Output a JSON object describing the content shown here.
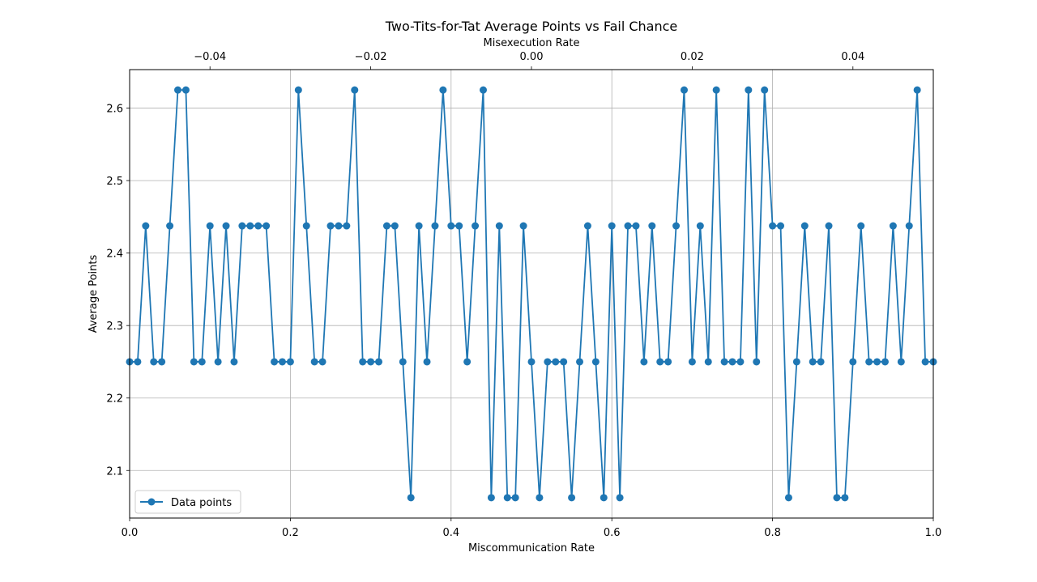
{
  "chart_data": {
    "type": "line",
    "title": "Two-Tits-for-Tat Average Points vs Fail Chance",
    "xlabel": "Miscommunication Rate",
    "ylabel": "Average Points",
    "x2label": "Misexecution Rate",
    "xlim": [
      0,
      1
    ],
    "ylim": [
      2.0344,
      2.6531
    ],
    "x2lim": [
      -0.05,
      0.05
    ],
    "xticks": [
      "0.0",
      "0.2",
      "0.4",
      "0.6",
      "0.8",
      "1.0"
    ],
    "yticks": [
      "2.1",
      "2.2",
      "2.3",
      "2.4",
      "2.5",
      "2.6"
    ],
    "x2ticks": [
      "−0.04",
      "−0.02",
      "0.00",
      "0.02",
      "0.04"
    ],
    "grid": true,
    "legend_position": "lower-left",
    "color": "#1f77b4",
    "series": [
      {
        "name": "Data points",
        "x": [
          0.0,
          0.01,
          0.02,
          0.03,
          0.04,
          0.05,
          0.06,
          0.07,
          0.08,
          0.09,
          0.1,
          0.11,
          0.12,
          0.13,
          0.14,
          0.15,
          0.16,
          0.17,
          0.18,
          0.19,
          0.2,
          0.21,
          0.22,
          0.23,
          0.24,
          0.25,
          0.26,
          0.27,
          0.28,
          0.29,
          0.3,
          0.31,
          0.32,
          0.33,
          0.34,
          0.35,
          0.36,
          0.37,
          0.38,
          0.39,
          0.4,
          0.41,
          0.42,
          0.43,
          0.44,
          0.45,
          0.46,
          0.47,
          0.48,
          0.49,
          0.5,
          0.51,
          0.52,
          0.53,
          0.54,
          0.55,
          0.56,
          0.57,
          0.58,
          0.59,
          0.6,
          0.61,
          0.62,
          0.63,
          0.64,
          0.65,
          0.66,
          0.67,
          0.68,
          0.69,
          0.7,
          0.71,
          0.72,
          0.73,
          0.74,
          0.75,
          0.76,
          0.77,
          0.78,
          0.79,
          0.8,
          0.81,
          0.82,
          0.83,
          0.84,
          0.85,
          0.86,
          0.87,
          0.88,
          0.89,
          0.9,
          0.91,
          0.92,
          0.93,
          0.94,
          0.95,
          0.96,
          0.97,
          0.98,
          0.99,
          1.0
        ],
        "values": [
          2.25,
          2.25,
          2.4375,
          2.25,
          2.25,
          2.4375,
          2.625,
          2.625,
          2.25,
          2.25,
          2.4375,
          2.25,
          2.4375,
          2.25,
          2.4375,
          2.4375,
          2.4375,
          2.4375,
          2.25,
          2.25,
          2.25,
          2.625,
          2.4375,
          2.25,
          2.25,
          2.4375,
          2.4375,
          2.4375,
          2.625,
          2.25,
          2.25,
          2.25,
          2.4375,
          2.4375,
          2.25,
          2.0625,
          2.4375,
          2.25,
          2.4375,
          2.625,
          2.4375,
          2.4375,
          2.25,
          2.4375,
          2.625,
          2.0625,
          2.4375,
          2.0625,
          2.0625,
          2.4375,
          2.25,
          2.0625,
          2.25,
          2.25,
          2.25,
          2.0625,
          2.25,
          2.4375,
          2.25,
          2.0625,
          2.4375,
          2.0625,
          2.4375,
          2.4375,
          2.25,
          2.4375,
          2.25,
          2.25,
          2.4375,
          2.625,
          2.25,
          2.4375,
          2.25,
          2.625,
          2.25,
          2.25,
          2.25,
          2.625,
          2.25,
          2.625,
          2.4375,
          2.4375,
          2.0625,
          2.25,
          2.4375,
          2.25,
          2.25,
          2.4375,
          2.0625,
          2.0625,
          2.25,
          2.4375,
          2.25,
          2.25,
          2.25,
          2.4375,
          2.25,
          2.4375,
          2.625,
          2.25,
          2.25
        ]
      }
    ]
  }
}
